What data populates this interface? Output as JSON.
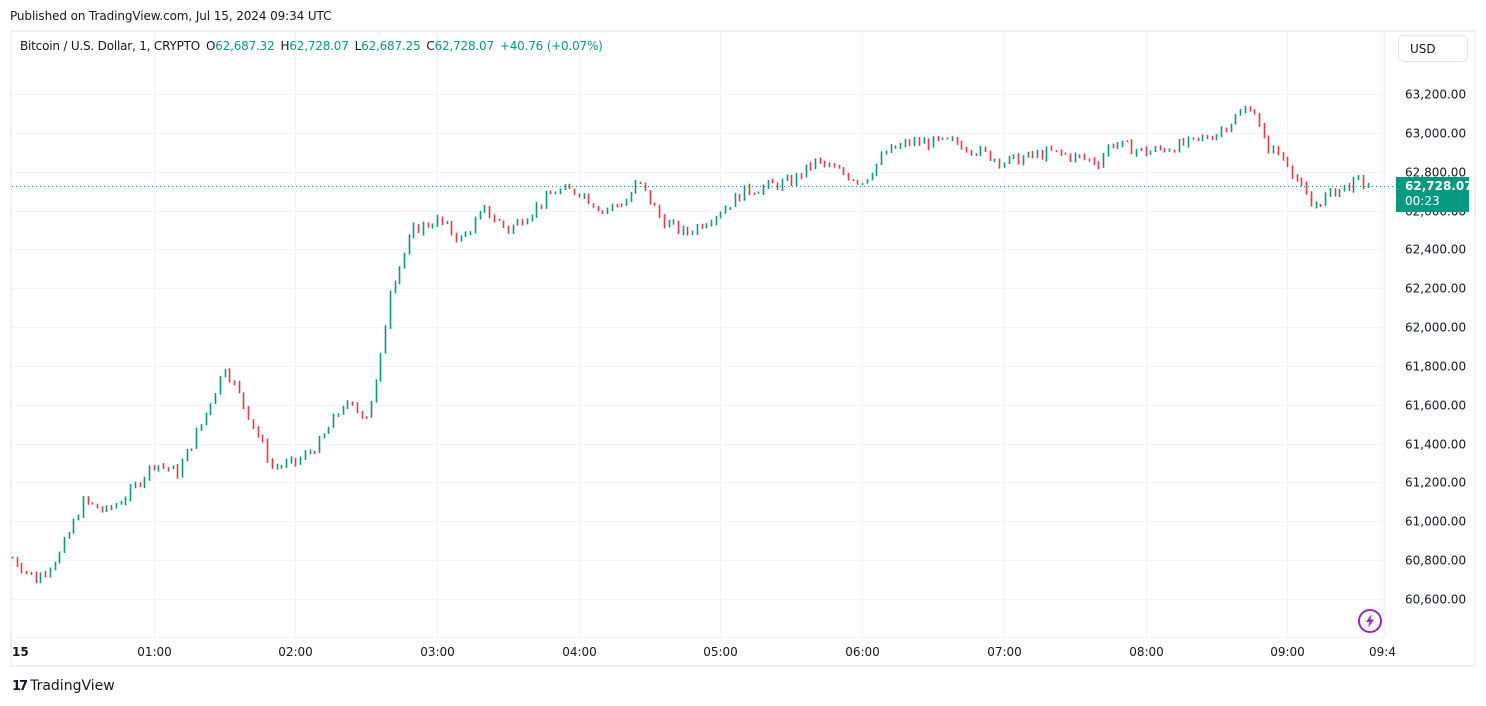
{
  "header": {
    "published": "Published on TradingView.com, Jul 15, 2024 09:34 UTC"
  },
  "legend": {
    "symbol": "Bitcoin / U.S. Dollar, 1, CRYPTO",
    "open_label": "O",
    "open": "62,687.32",
    "high_label": "H",
    "high": "62,728.07",
    "low_label": "L",
    "low": "62,687.25",
    "close_label": "C",
    "close": "62,728.07",
    "change": "+40.76 (+0.07%)"
  },
  "currency_button": {
    "label": "USD"
  },
  "price_tag": {
    "price": "62,728.07",
    "countdown": "00:23"
  },
  "footer": {
    "brand": "TradingView",
    "logo_glyph": "17"
  },
  "colors": {
    "up": "#089981",
    "down": "#f23645",
    "grid": "#f0f3fa",
    "accent_purple": "#9c27b0"
  },
  "chart_data": {
    "type": "candlestick",
    "title": "Bitcoin / U.S. Dollar, 1, CRYPTO",
    "xlabel": "",
    "ylabel": "USD",
    "ylim": [
      60460,
      63360
    ],
    "y_ticks": [
      "63,200.00",
      "63,000.00",
      "62,800.00",
      "62,600.00",
      "62,400.00",
      "62,200.00",
      "62,000.00",
      "61,800.00",
      "61,600.00",
      "61,400.00",
      "61,200.00",
      "61,000.00",
      "60,800.00",
      "60,600.00"
    ],
    "y_tick_values": [
      63200,
      63000,
      62800,
      62600,
      62400,
      62200,
      62000,
      61800,
      61600,
      61400,
      61200,
      61000,
      60800,
      60600
    ],
    "x_ticks": [
      "15",
      "01:00",
      "02:00",
      "03:00",
      "04:00",
      "05:00",
      "06:00",
      "07:00",
      "08:00",
      "09:00",
      "09:4"
    ],
    "x_tick_minutes": [
      0,
      60,
      120,
      180,
      240,
      300,
      360,
      420,
      480,
      540,
      580
    ],
    "last_price": 62728.07,
    "grid": true,
    "price_path_minutes": [
      0,
      10,
      20,
      30,
      40,
      50,
      60,
      70,
      80,
      90,
      100,
      110,
      120,
      130,
      140,
      150,
      155,
      160,
      170,
      180,
      190,
      200,
      210,
      220,
      230,
      240,
      250,
      260,
      265,
      275,
      285,
      300,
      310,
      330,
      340,
      350,
      360,
      370,
      380,
      400,
      410,
      420,
      440,
      460,
      465,
      480,
      500,
      510,
      525,
      530,
      540,
      550,
      560,
      570,
      574
    ],
    "price_path_values": [
      60810,
      60700,
      60830,
      61100,
      61050,
      61150,
      61300,
      61250,
      61500,
      61800,
      61550,
      61280,
      61300,
      61400,
      61600,
      61550,
      61750,
      62200,
      62500,
      62550,
      62450,
      62600,
      62500,
      62600,
      62700,
      62700,
      62600,
      62650,
      62750,
      62550,
      62480,
      62600,
      62700,
      62750,
      62850,
      62800,
      62750,
      62900,
      62950,
      62950,
      62900,
      62850,
      62900,
      62850,
      62950,
      62900,
      62950,
      63000,
      63150,
      62950,
      62850,
      62620,
      62700,
      62750,
      62728
    ]
  }
}
